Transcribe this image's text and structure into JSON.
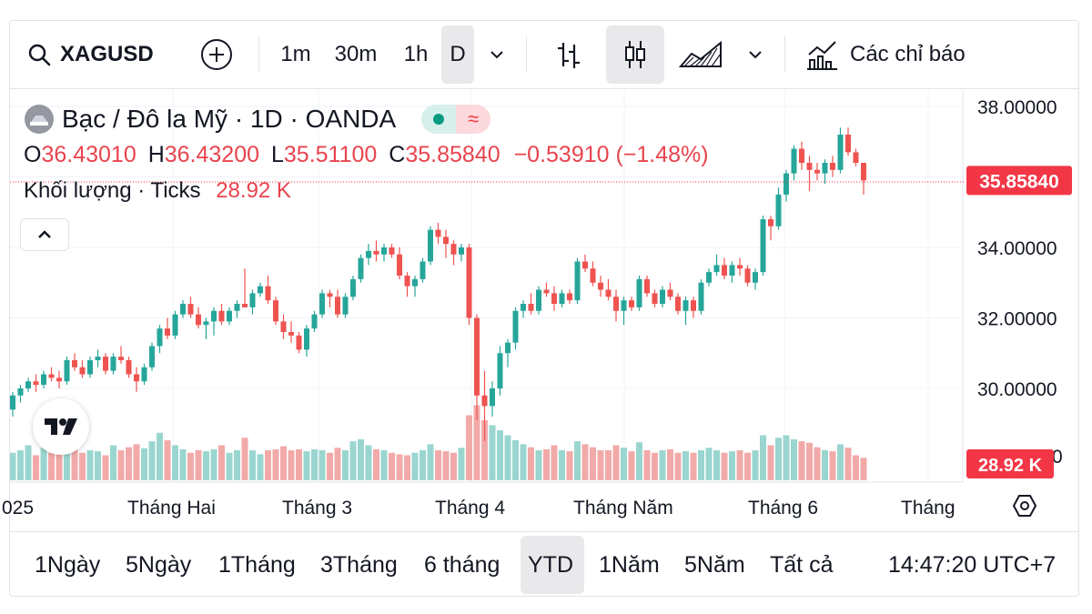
{
  "toolbar": {
    "symbol": "XAGUSD",
    "intervals": [
      "1m",
      "30m",
      "1h",
      "D"
    ],
    "indicators_label": "Các chỉ báo"
  },
  "legend": {
    "title": "Bạc / Đô la Mỹ · 1D · OANDA",
    "o_label": "O",
    "o_value": "36.43010",
    "h_label": "H",
    "h_value": "36.43200",
    "l_label": "L",
    "l_value": "35.51100",
    "c_label": "C",
    "c_value": "35.85840",
    "change": "−0.53910 (−1.48%)",
    "volume_label": "Khối lượng · Ticks",
    "volume_value": "28.92 K"
  },
  "price_axis": {
    "ticks": [
      "38.00000",
      "34.00000",
      "32.00000",
      "30.00000"
    ],
    "partial_tick": "0",
    "last_price_badge": "35.85840",
    "volume_badge": "28.92 K"
  },
  "time_axis": {
    "labels": [
      "025",
      "Tháng Hai",
      "Tháng 3",
      "Tháng 4",
      "Tháng Năm",
      "Tháng 6",
      "Tháng"
    ]
  },
  "ranges": [
    "1Ngày",
    "5Ngày",
    "1Tháng",
    "3Tháng",
    "6 tháng",
    "YTD",
    "1Năm",
    "5Năm",
    "Tất cả"
  ],
  "active_range": "YTD",
  "clock": "14:47:20 UTC+7",
  "colors": {
    "up": "#26a69a",
    "down": "#ef5350",
    "vol_up": "#9ad6cf",
    "vol_down": "#f2aaa9",
    "badge": "#f23645"
  },
  "chart_data": {
    "type": "candlestick",
    "title": "Bạc / Đô la Mỹ · 1D · OANDA",
    "ylim": [
      28.0,
      38.3
    ],
    "y_ticks": [
      30,
      32,
      34,
      38
    ],
    "volume_unit": "K ticks",
    "x_labels": [
      "Tháng Hai",
      "Tháng 3",
      "Tháng 4",
      "Tháng Năm",
      "Tháng 6"
    ],
    "candles": [
      [
        29.4,
        29.9,
        29.2,
        29.8
      ],
      [
        29.8,
        30.1,
        29.6,
        30.0
      ],
      [
        30.0,
        30.3,
        29.9,
        30.2
      ],
      [
        30.2,
        30.4,
        29.9,
        30.1
      ],
      [
        30.1,
        30.5,
        30.0,
        30.4
      ],
      [
        30.4,
        30.6,
        30.2,
        30.3
      ],
      [
        30.3,
        30.5,
        30.0,
        30.2
      ],
      [
        30.2,
        30.9,
        30.1,
        30.8
      ],
      [
        30.8,
        31.0,
        30.5,
        30.6
      ],
      [
        30.6,
        30.8,
        30.3,
        30.4
      ],
      [
        30.4,
        30.9,
        30.3,
        30.8
      ],
      [
        30.8,
        31.1,
        30.6,
        30.9
      ],
      [
        30.9,
        31.0,
        30.4,
        30.5
      ],
      [
        30.5,
        31.0,
        30.4,
        30.9
      ],
      [
        30.9,
        31.2,
        30.7,
        30.8
      ],
      [
        30.8,
        30.9,
        30.3,
        30.4
      ],
      [
        30.4,
        30.6,
        29.9,
        30.2
      ],
      [
        30.2,
        30.7,
        30.1,
        30.6
      ],
      [
        30.6,
        31.3,
        30.5,
        31.2
      ],
      [
        31.2,
        31.8,
        31.0,
        31.7
      ],
      [
        31.7,
        32.0,
        31.4,
        31.5
      ],
      [
        31.5,
        32.2,
        31.4,
        32.1
      ],
      [
        32.1,
        32.5,
        32.0,
        32.4
      ],
      [
        32.4,
        32.6,
        32.0,
        32.1
      ],
      [
        32.1,
        32.3,
        31.7,
        31.8
      ],
      [
        31.8,
        32.0,
        31.4,
        31.9
      ],
      [
        31.9,
        32.3,
        31.5,
        32.2
      ],
      [
        32.2,
        32.4,
        31.8,
        31.9
      ],
      [
        31.9,
        32.3,
        31.8,
        32.2
      ],
      [
        32.2,
        32.5,
        32.0,
        32.4
      ],
      [
        32.4,
        33.4,
        32.3,
        32.3
      ],
      [
        32.3,
        32.8,
        32.1,
        32.7
      ],
      [
        32.7,
        33.0,
        32.6,
        32.9
      ],
      [
        32.9,
        33.2,
        32.4,
        32.5
      ],
      [
        32.5,
        32.6,
        31.8,
        31.9
      ],
      [
        31.9,
        32.1,
        31.4,
        31.6
      ],
      [
        31.6,
        31.9,
        31.3,
        31.5
      ],
      [
        31.5,
        31.6,
        31.0,
        31.1
      ],
      [
        31.1,
        31.8,
        30.9,
        31.7
      ],
      [
        31.7,
        32.2,
        31.6,
        32.1
      ],
      [
        32.1,
        32.8,
        32.0,
        32.7
      ],
      [
        32.7,
        32.8,
        32.3,
        32.6
      ],
      [
        32.6,
        32.8,
        32.0,
        32.1
      ],
      [
        32.1,
        32.7,
        32.0,
        32.6
      ],
      [
        32.6,
        33.2,
        32.5,
        33.1
      ],
      [
        33.1,
        33.8,
        33.0,
        33.7
      ],
      [
        33.7,
        34.1,
        33.5,
        33.9
      ],
      [
        33.9,
        34.2,
        33.6,
        33.8
      ],
      [
        33.8,
        34.1,
        33.6,
        34.0
      ],
      [
        34.0,
        34.1,
        33.7,
        33.8
      ],
      [
        33.8,
        34.0,
        33.1,
        33.2
      ],
      [
        33.2,
        33.3,
        32.6,
        32.9
      ],
      [
        32.9,
        33.2,
        32.6,
        33.1
      ],
      [
        33.1,
        33.7,
        33.0,
        33.6
      ],
      [
        33.6,
        34.6,
        33.5,
        34.5
      ],
      [
        34.5,
        34.7,
        34.1,
        34.3
      ],
      [
        34.3,
        34.5,
        33.7,
        34.1
      ],
      [
        34.1,
        34.2,
        33.5,
        33.8
      ],
      [
        33.8,
        34.1,
        33.6,
        34.0
      ],
      [
        34.0,
        34.1,
        31.8,
        32.0
      ],
      [
        32.0,
        32.1,
        29.1,
        29.8
      ],
      [
        29.8,
        30.5,
        28.5,
        29.5
      ],
      [
        29.5,
        30.2,
        29.2,
        30.0
      ],
      [
        30.0,
        31.2,
        29.8,
        31.0
      ],
      [
        31.0,
        31.4,
        30.6,
        31.3
      ],
      [
        31.3,
        32.3,
        31.1,
        32.2
      ],
      [
        32.2,
        32.5,
        32.0,
        32.4
      ],
      [
        32.4,
        32.7,
        32.1,
        32.2
      ],
      [
        32.2,
        32.9,
        32.1,
        32.8
      ],
      [
        32.8,
        33.0,
        32.6,
        32.7
      ],
      [
        32.7,
        32.9,
        32.2,
        32.4
      ],
      [
        32.4,
        32.8,
        32.3,
        32.7
      ],
      [
        32.7,
        32.8,
        32.4,
        32.5
      ],
      [
        32.5,
        33.7,
        32.4,
        33.6
      ],
      [
        33.6,
        33.8,
        33.3,
        33.4
      ],
      [
        33.4,
        33.6,
        32.9,
        33.0
      ],
      [
        33.0,
        33.2,
        32.6,
        32.8
      ],
      [
        32.8,
        33.1,
        32.5,
        32.6
      ],
      [
        32.6,
        32.8,
        31.9,
        32.2
      ],
      [
        32.2,
        32.6,
        31.8,
        32.5
      ],
      [
        32.5,
        32.6,
        32.2,
        32.3
      ],
      [
        32.3,
        33.2,
        32.2,
        33.1
      ],
      [
        33.1,
        33.2,
        32.6,
        32.7
      ],
      [
        32.7,
        32.8,
        32.3,
        32.4
      ],
      [
        32.4,
        32.9,
        32.3,
        32.8
      ],
      [
        32.8,
        33.0,
        32.5,
        32.6
      ],
      [
        32.6,
        32.7,
        32.1,
        32.2
      ],
      [
        32.2,
        32.6,
        31.8,
        32.5
      ],
      [
        32.5,
        32.6,
        32.0,
        32.2
      ],
      [
        32.2,
        33.1,
        32.1,
        33.0
      ],
      [
        33.0,
        33.4,
        32.9,
        33.3
      ],
      [
        33.3,
        33.8,
        33.2,
        33.5
      ],
      [
        33.5,
        33.7,
        33.1,
        33.2
      ],
      [
        33.2,
        33.6,
        33.0,
        33.5
      ],
      [
        33.5,
        33.7,
        33.2,
        33.4
      ],
      [
        33.4,
        33.5,
        32.9,
        33.0
      ],
      [
        33.0,
        33.4,
        32.8,
        33.3
      ],
      [
        33.3,
        34.9,
        33.2,
        34.8
      ],
      [
        34.8,
        34.9,
        34.2,
        34.6
      ],
      [
        34.6,
        35.7,
        34.5,
        35.5
      ],
      [
        35.5,
        36.2,
        35.3,
        36.1
      ],
      [
        36.1,
        36.9,
        35.9,
        36.8
      ],
      [
        36.8,
        37.0,
        36.2,
        36.4
      ],
      [
        36.4,
        36.6,
        35.6,
        36.2
      ],
      [
        36.2,
        36.4,
        35.9,
        36.1
      ],
      [
        36.1,
        36.5,
        35.8,
        36.4
      ],
      [
        36.4,
        36.6,
        36.0,
        36.2
      ],
      [
        36.2,
        37.4,
        36.1,
        37.2
      ],
      [
        37.2,
        37.4,
        36.6,
        36.7
      ],
      [
        36.7,
        36.8,
        36.3,
        36.4
      ],
      [
        36.4,
        36.4,
        35.5,
        35.9
      ]
    ],
    "volumes": [
      0.55,
      0.6,
      0.7,
      0.5,
      0.65,
      0.55,
      0.6,
      0.75,
      0.62,
      0.55,
      0.6,
      0.58,
      0.5,
      0.7,
      0.6,
      0.66,
      0.72,
      0.64,
      0.78,
      0.95,
      0.8,
      0.7,
      0.62,
      0.55,
      0.6,
      0.58,
      0.62,
      0.7,
      0.55,
      0.6,
      0.85,
      0.6,
      0.52,
      0.6,
      0.62,
      0.68,
      0.6,
      0.62,
      0.58,
      0.62,
      0.6,
      0.55,
      0.65,
      0.6,
      0.78,
      0.82,
      0.7,
      0.62,
      0.6,
      0.55,
      0.52,
      0.5,
      0.55,
      0.6,
      0.72,
      0.6,
      0.58,
      0.55,
      0.65,
      1.3,
      1.5,
      1.2,
      1.1,
      1.0,
      0.9,
      0.8,
      0.72,
      0.66,
      0.6,
      0.62,
      0.7,
      0.6,
      0.58,
      0.78,
      0.72,
      0.66,
      0.6,
      0.6,
      0.7,
      0.65,
      0.58,
      0.76,
      0.6,
      0.55,
      0.6,
      0.62,
      0.55,
      0.58,
      0.55,
      0.6,
      0.65,
      0.6,
      0.55,
      0.58,
      0.6,
      0.55,
      0.6,
      0.9,
      0.7,
      0.85,
      0.9,
      0.82,
      0.78,
      0.75,
      0.66,
      0.6,
      0.58,
      0.72,
      0.65,
      0.5,
      0.45
    ]
  }
}
